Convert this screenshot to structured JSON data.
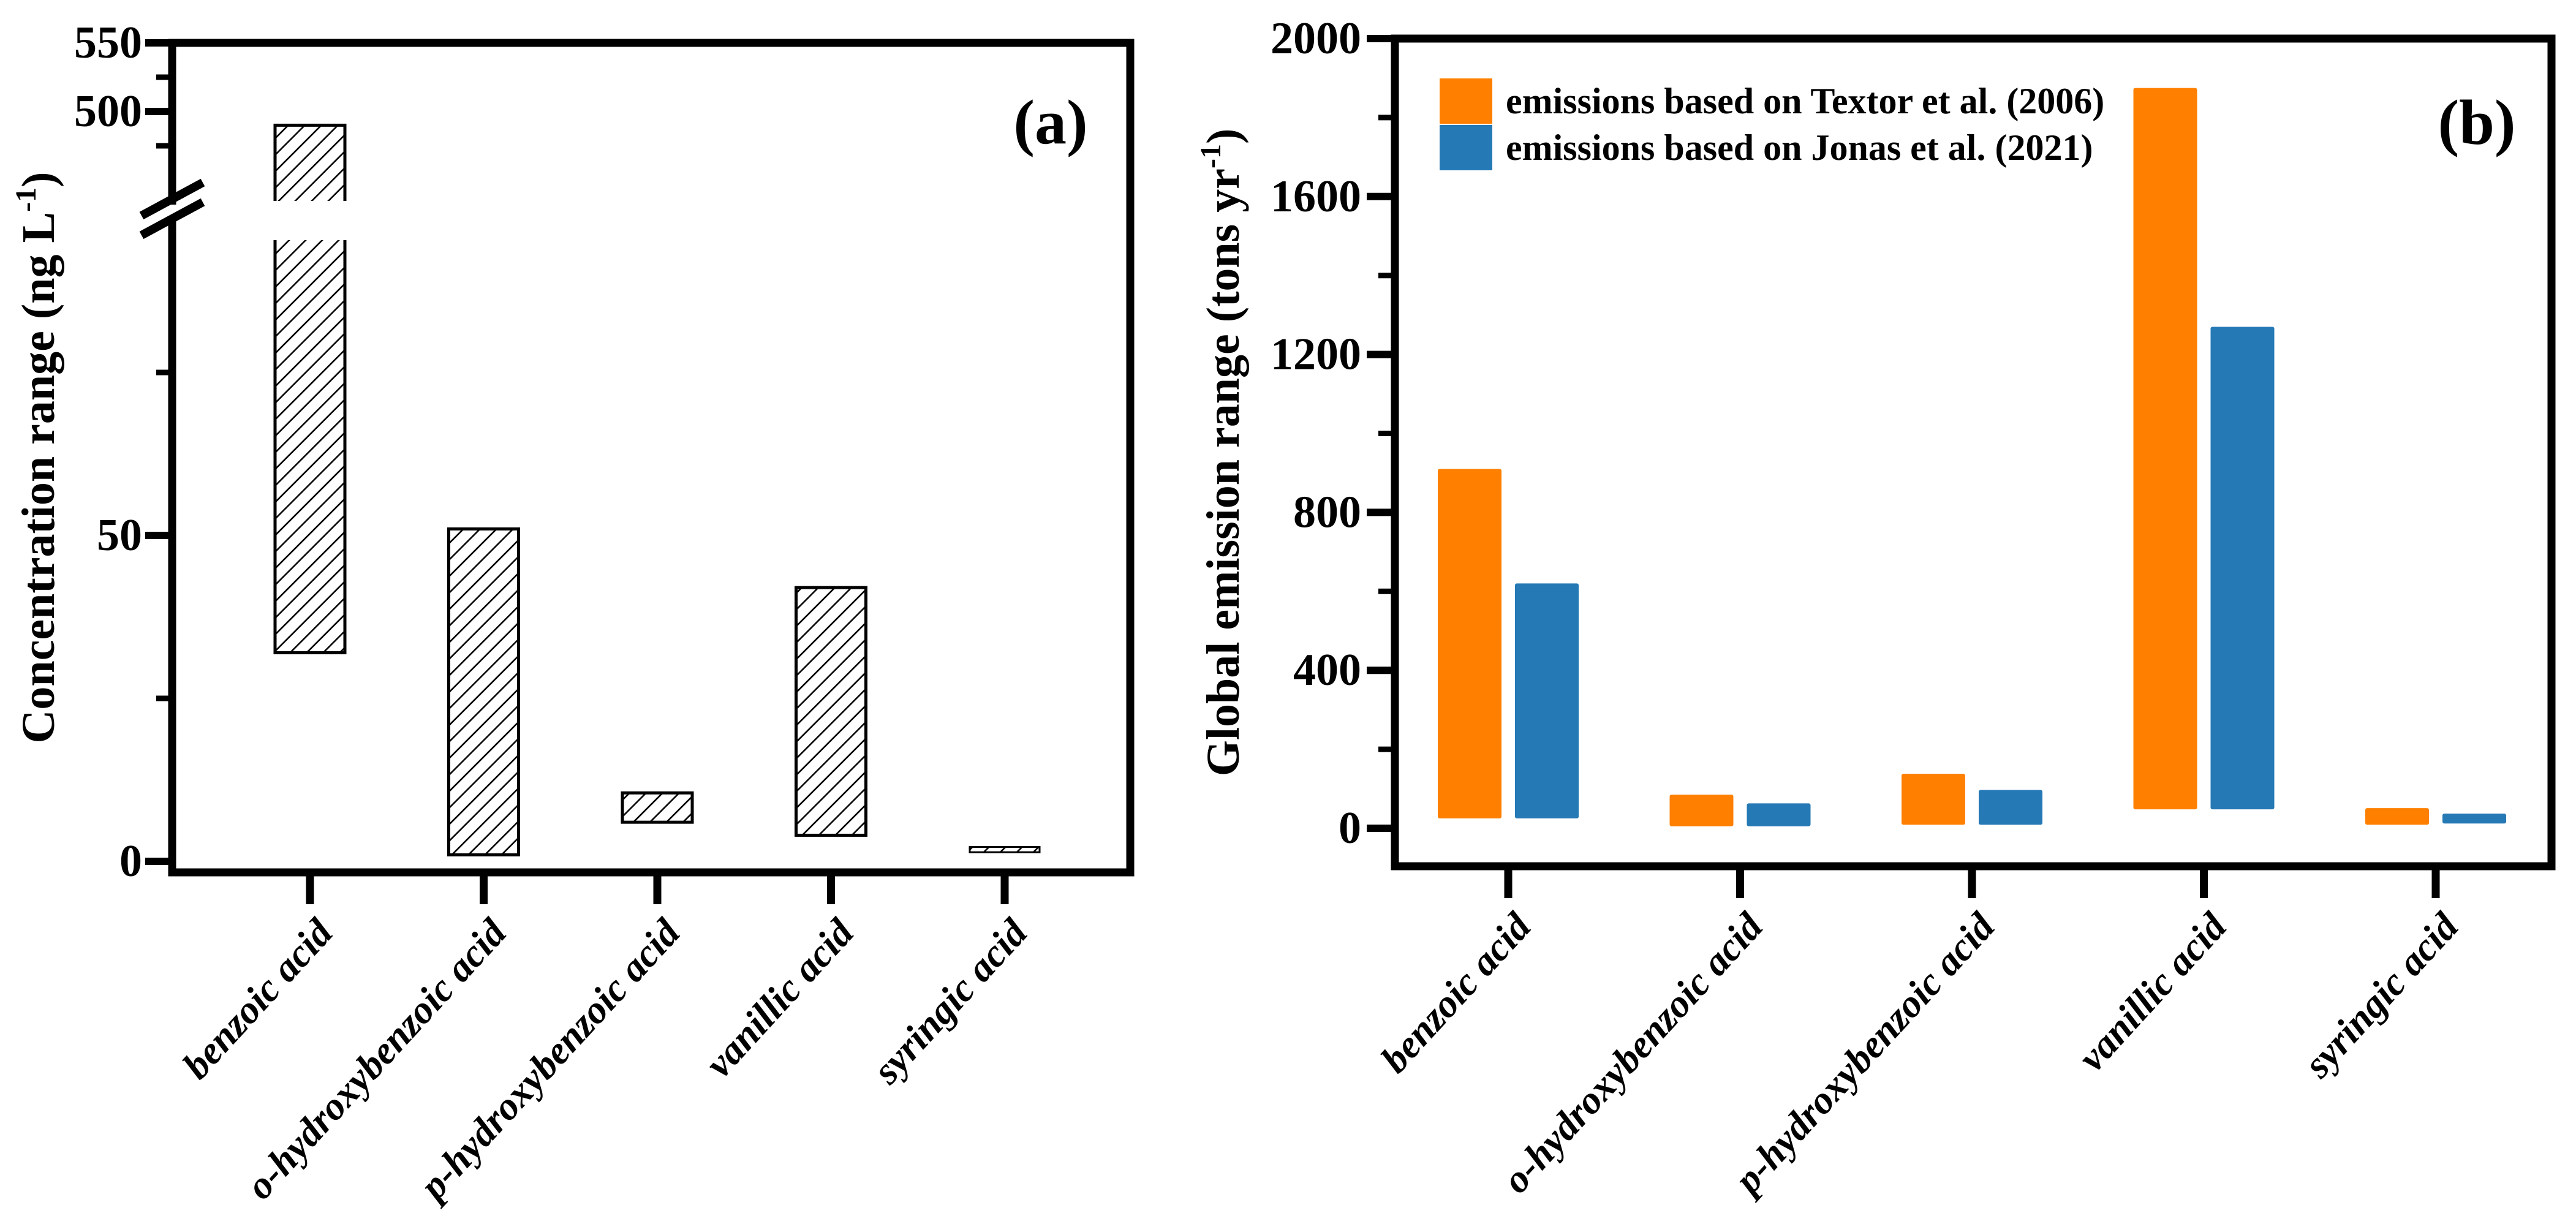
{
  "figure": {
    "background": "#ffffff",
    "text_color": "#000000"
  },
  "chart_data": [
    {
      "type": "bar",
      "panel_label": "(a)",
      "subtype": "floating-range-bars",
      "bar_style": "white fill with black diagonal hatch, black outline",
      "title": "",
      "xlabel": "",
      "ylabel": "Concentration range (ng L⁻¹)",
      "ylabel_parts": {
        "main": "Concentration range (ng L",
        "sup": "-1",
        "close": ")"
      },
      "categories": [
        "benzoic acid",
        "o-hydroxybenzoic acid",
        "p-hydroxybenzoic acid",
        "vanillic acid",
        "syringic acid"
      ],
      "units": "ng L-1",
      "series": [
        {
          "name": "concentration range",
          "ranges": [
            [
              32,
              490
            ],
            [
              1,
              51
            ],
            [
              6,
              10.5
            ],
            [
              4,
              42
            ],
            [
              1.4,
              2.2
            ]
          ]
        }
      ],
      "y_axis": {
        "broken": true,
        "lower_segment": {
          "lim": [
            0,
            105
          ],
          "major_ticks": [
            0,
            50
          ],
          "major_labels": [
            "0",
            "50"
          ],
          "minor_ticks": [
            25,
            75
          ]
        },
        "upper_segment": {
          "lim": [
            460,
            550
          ],
          "major_ticks": [
            500,
            550
          ],
          "major_labels": [
            "500",
            "550"
          ],
          "minor_ticks": [
            475,
            525
          ]
        }
      },
      "grid": false,
      "legend": null
    },
    {
      "type": "bar",
      "panel_label": "(b)",
      "subtype": "grouped-floating-range-bars",
      "title": "",
      "xlabel": "",
      "ylabel": "Global emission range (tons yr⁻¹)",
      "ylabel_parts": {
        "main": "Global emission range (tons yr",
        "sup": "-1",
        "close": ")"
      },
      "categories": [
        "benzoic acid",
        "o-hydroxybenzoic acid",
        "p-hydroxybenzoic acid",
        "vanillic acid",
        "syringic acid"
      ],
      "units": "tons yr-1",
      "series": [
        {
          "name": "emissions based on Textor et al. (2006)",
          "short": "textor-2006",
          "color": "#FF8000",
          "ranges": [
            [
              25,
              910
            ],
            [
              5,
              85
            ],
            [
              9,
              138
            ],
            [
              48,
              1875
            ],
            [
              9,
              51
            ]
          ]
        },
        {
          "name": "emissions based on Jonas et al. (2021)",
          "short": "jonas-2021",
          "color": "#2579B5",
          "ranges": [
            [
              25,
              620
            ],
            [
              5,
              63
            ],
            [
              9,
              97
            ],
            [
              48,
              1270
            ],
            [
              12,
              37
            ]
          ]
        }
      ],
      "y_axis": {
        "broken": false,
        "lim": [
          0,
          2000
        ],
        "major_ticks": [
          0,
          400,
          800,
          1200,
          1600,
          2000
        ],
        "major_labels": [
          "0",
          "400",
          "800",
          "1200",
          "1600",
          "2000"
        ],
        "minor_ticks": [
          200,
          600,
          1000,
          1400,
          1800
        ]
      },
      "grid": false,
      "legend": {
        "position": "top-left",
        "entries": [
          "emissions based on Textor et al. (2006)",
          "emissions based on Jonas et al. (2021)"
        ]
      }
    }
  ]
}
